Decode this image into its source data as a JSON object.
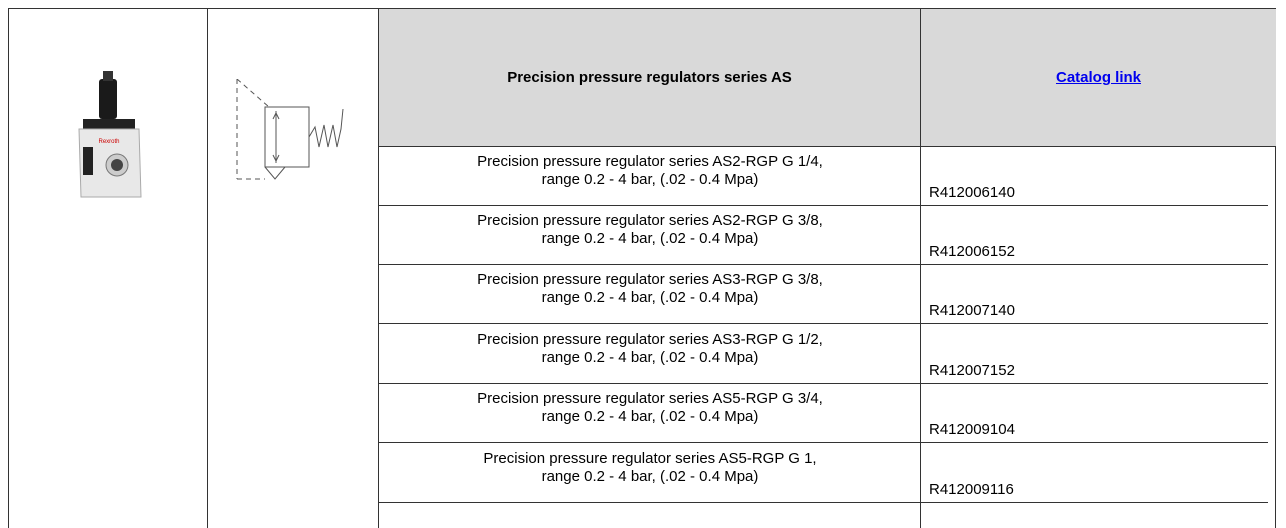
{
  "product_image": {
    "brand": "Rexroth"
  },
  "header": {
    "title": "Precision pressure regulators series AS",
    "link": "Catalog link"
  },
  "rows": [
    {
      "description": [
        "Precision pressure regulator series AS2-RGP G 1/4,",
        "range 0.2 - 4 bar, (.02 - 0.4 Mpa)"
      ],
      "part": "R412006140"
    },
    {
      "description": [
        "Precision pressure regulator series AS2-RGP G 3/8,",
        "range 0.2 - 4 bar, (.02 - 0.4 Mpa)"
      ],
      "part": "R412006152"
    },
    {
      "description": [
        "Precision pressure regulator series AS3-RGP G 3/8,",
        "range 0.2 - 4 bar, (.02 - 0.4 Mpa)"
      ],
      "part": "R412007140"
    },
    {
      "description": [
        "Precision pressure regulator series AS3-RGP G 1/2,",
        "range 0.2 - 4 bar, (.02 - 0.4 Mpa)"
      ],
      "part": "R412007152"
    },
    {
      "description": [
        "Precision pressure regulator series AS5-RGP G 3/4,",
        "range 0.2 - 4 bar, (.02 - 0.4 Mpa)"
      ],
      "part": "R412009104"
    },
    {
      "description": [
        "Precision pressure regulator series AS5-RGP G 1,",
        "range 0.2 - 4 bar, (.02 - 0.4 Mpa)"
      ],
      "part": "R412009116"
    }
  ]
}
